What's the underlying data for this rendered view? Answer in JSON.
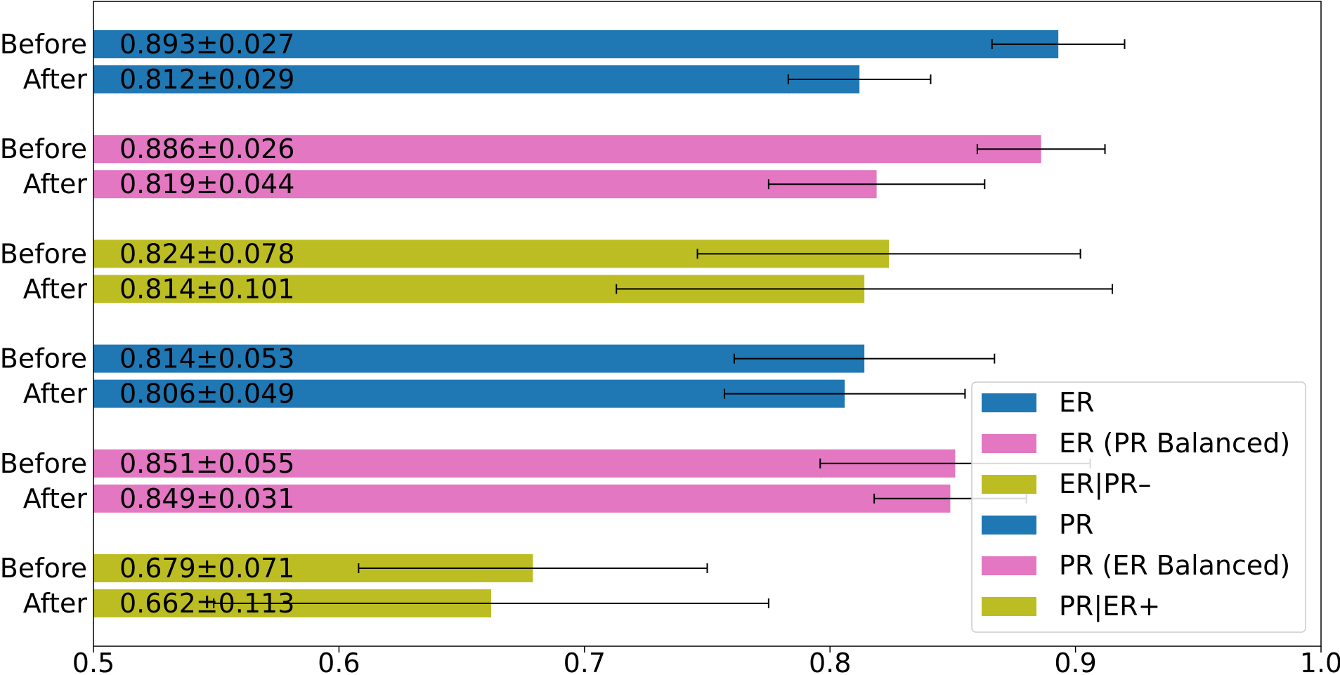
{
  "chart_data": {
    "type": "bar",
    "orientation": "horizontal",
    "title": "",
    "xlabel": "",
    "ylabel": "",
    "xlim": [
      0.5,
      1.0
    ],
    "grid": false,
    "legend_placement": "lower-right",
    "x_ticks": [
      "0.5",
      "0.6",
      "0.7",
      "0.8",
      "0.9",
      "1.0"
    ],
    "bars": [
      {
        "category": "Before",
        "group": "ER",
        "value": 0.893,
        "error": 0.027,
        "label": "0.893±0.027"
      },
      {
        "category": "After",
        "group": "ER",
        "value": 0.812,
        "error": 0.029,
        "label": "0.812±0.029"
      },
      {
        "category": "Before",
        "group": "ER (PR Balanced)",
        "value": 0.886,
        "error": 0.026,
        "label": "0.886±0.026"
      },
      {
        "category": "After",
        "group": "ER (PR Balanced)",
        "value": 0.819,
        "error": 0.044,
        "label": "0.819±0.044"
      },
      {
        "category": "Before",
        "group": "ER|PR–",
        "value": 0.824,
        "error": 0.078,
        "label": "0.824±0.078"
      },
      {
        "category": "After",
        "group": "ER|PR–",
        "value": 0.814,
        "error": 0.101,
        "label": "0.814±0.101"
      },
      {
        "category": "Before",
        "group": "PR",
        "value": 0.814,
        "error": 0.053,
        "label": "0.814±0.053"
      },
      {
        "category": "After",
        "group": "PR",
        "value": 0.806,
        "error": 0.049,
        "label": "0.806±0.049"
      },
      {
        "category": "Before",
        "group": "PR (ER Balanced)",
        "value": 0.851,
        "error": 0.055,
        "label": "0.851±0.055"
      },
      {
        "category": "After",
        "group": "PR (ER Balanced)",
        "value": 0.849,
        "error": 0.031,
        "label": "0.849±0.031"
      },
      {
        "category": "Before",
        "group": "PR|ER+",
        "value": 0.679,
        "error": 0.071,
        "label": "0.679±0.071"
      },
      {
        "category": "After",
        "group": "PR|ER+",
        "value": 0.662,
        "error": 0.113,
        "label": "0.662±0.113"
      }
    ],
    "legend": [
      {
        "name": "ER",
        "color": "#1f77b4"
      },
      {
        "name": "ER (PR Balanced)",
        "color": "#e377c2"
      },
      {
        "name": "ER|PR–",
        "color": "#bcbd22"
      },
      {
        "name": "PR",
        "color": "#1f77b4"
      },
      {
        "name": "PR (ER Balanced)",
        "color": "#e377c2"
      },
      {
        "name": "PR|ER+",
        "color": "#bcbd22"
      }
    ]
  }
}
